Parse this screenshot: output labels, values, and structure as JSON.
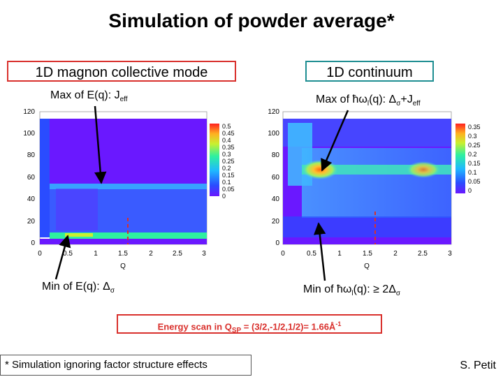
{
  "title": "Simulation of powder average*",
  "left_panel": {
    "header": "1D magnon collective mode",
    "annot_top": "Max of E(q): J",
    "annot_top_sub": "eff",
    "annot_bottom": "Min of E(q): Δ",
    "annot_bottom_sub": "σ"
  },
  "right_panel": {
    "header": "1D continuum",
    "annot_top_a": "Max of ħω",
    "annot_top_l": "l",
    "annot_top_b": "(q): Δ",
    "annot_top_s": "σ",
    "annot_top_c": "+J",
    "annot_top_eff": "eff",
    "annot_bottom_a": "Min of ħω",
    "annot_bottom_l": "l",
    "annot_bottom_b": "(q): ≥ 2Δ",
    "annot_bottom_s": "σ"
  },
  "energy_scan": {
    "prefix": "Energy scan in Q",
    "sub": "SP",
    "value": " = (3/2,-1/2,1/2)= 1.66Å",
    "sup": "-1"
  },
  "footnote": "* Simulation ignoring factor structure effects",
  "author": "S. Petit",
  "colors": {
    "accent_red": "#d9302c",
    "accent_teal": "#1e8e92"
  },
  "chart_data": [
    {
      "type": "heatmap",
      "title": "",
      "xlabel": "Q",
      "ylabel": "",
      "xlim": [
        0,
        3
      ],
      "ylim": [
        0,
        120
      ],
      "x_ticks": [
        "0",
        "0.5",
        "1",
        "1.5",
        "2",
        "2.5",
        "3"
      ],
      "y_ticks": [
        "0",
        "20",
        "40",
        "60",
        "80",
        "100",
        "120"
      ],
      "colorbar_ticks": [
        "0.5",
        "0.45",
        "0.4",
        "0.35",
        "0.3",
        "0.25",
        "0.2",
        "0.15",
        "0.1",
        "0.05",
        "0"
      ],
      "colorbar_range": [
        0,
        0.5
      ],
      "energy_scan_Q": 1.66
    },
    {
      "type": "heatmap",
      "title": "",
      "xlabel": "Q",
      "ylabel": "",
      "xlim": [
        0,
        3
      ],
      "ylim": [
        0,
        120
      ],
      "x_ticks": [
        "0",
        "0.5",
        "1",
        "1.5",
        "2",
        "2.5",
        "3"
      ],
      "y_ticks": [
        "0",
        "20",
        "40",
        "60",
        "80",
        "100",
        "120"
      ],
      "colorbar_ticks": [
        "0.35",
        "0.3",
        "0.25",
        "0.2",
        "0.15",
        "0.1",
        "0.05",
        "0"
      ],
      "colorbar_range": [
        0,
        0.35
      ],
      "energy_scan_Q": 1.66
    }
  ]
}
